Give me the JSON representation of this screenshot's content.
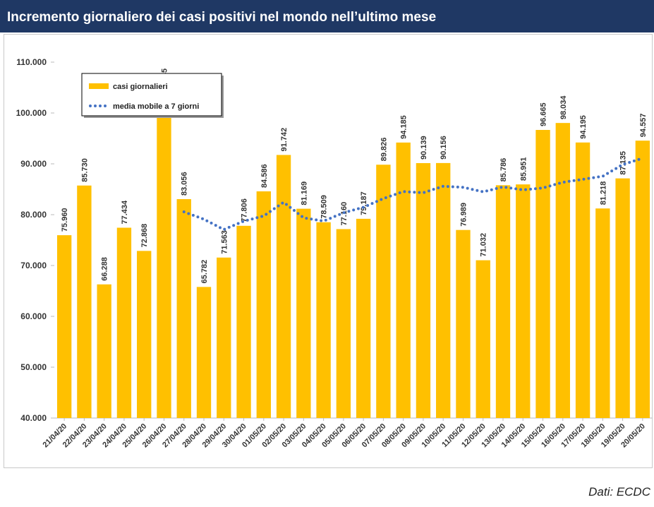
{
  "chart_data": {
    "type": "bar",
    "title": "Incremento giornaliero dei casi positivi nel mondo nell’ultimo mese",
    "source": "Dati: ECDC",
    "categories": [
      "21/04/20",
      "22/04/20",
      "23/04/20",
      "24/04/20",
      "25/04/20",
      "26/04/20",
      "27/04/20",
      "28/04/20",
      "29/04/20",
      "30/04/20",
      "01/05/20",
      "02/05/20",
      "03/05/20",
      "04/05/20",
      "05/05/20",
      "06/05/20",
      "07/05/20",
      "08/05/20",
      "09/05/20",
      "10/05/20",
      "11/05/20",
      "12/05/20",
      "13/05/20",
      "14/05/20",
      "15/05/20",
      "16/05/20",
      "17/05/20",
      "18/05/20",
      "19/05/20",
      "20/05/20"
    ],
    "series": [
      {
        "name": "casi giornalieri",
        "color": "#ffc000",
        "values": [
          75960,
          85730,
          66288,
          77434,
          72868,
          102545,
          83056,
          65782,
          71563,
          77806,
          84586,
          91742,
          81169,
          78509,
          77160,
          79187,
          89826,
          94185,
          90139,
          90156,
          76989,
          71032,
          85786,
          85951,
          96665,
          98034,
          94195,
          81218,
          87135,
          94557
        ],
        "value_labels": [
          "75.960",
          "85.730",
          "66.288",
          "77.434",
          "72.868",
          "102.545",
          "83.056",
          "65.782",
          "71.563",
          "77.806",
          "84.586",
          "91.742",
          "81.169",
          "78.509",
          "77.160",
          "79.187",
          "89.826",
          "94.185",
          "90.139",
          "90.156",
          "76.989",
          "71.032",
          "85.786",
          "85.951",
          "96.665",
          "98.034",
          "94.195",
          "81.218",
          "87.135",
          "94.557"
        ]
      },
      {
        "name": "media mobile a 7 giorni",
        "color": "#4472c4",
        "type": "line",
        "values": [
          null,
          null,
          null,
          null,
          null,
          null,
          80554,
          79100,
          77077,
          78722,
          79744,
          82440,
          79386,
          78737,
          80362,
          81451,
          83168,
          84540,
          84311,
          85595,
          85377,
          84502,
          85445,
          84891,
          85245,
          86373,
          86950,
          87554,
          89855,
          91108
        ]
      }
    ],
    "ylim": [
      40000,
      110000
    ],
    "yticks": [
      {
        "value": 40000,
        "label": "40.000"
      },
      {
        "value": 50000,
        "label": "50.000"
      },
      {
        "value": 60000,
        "label": "60.000"
      },
      {
        "value": 70000,
        "label": "70.000"
      },
      {
        "value": 80000,
        "label": "80.000"
      },
      {
        "value": 90000,
        "label": "90.000"
      },
      {
        "value": 100000,
        "label": "100.000"
      },
      {
        "value": 110000,
        "label": "110.000"
      }
    ],
    "legend": "top-left"
  }
}
